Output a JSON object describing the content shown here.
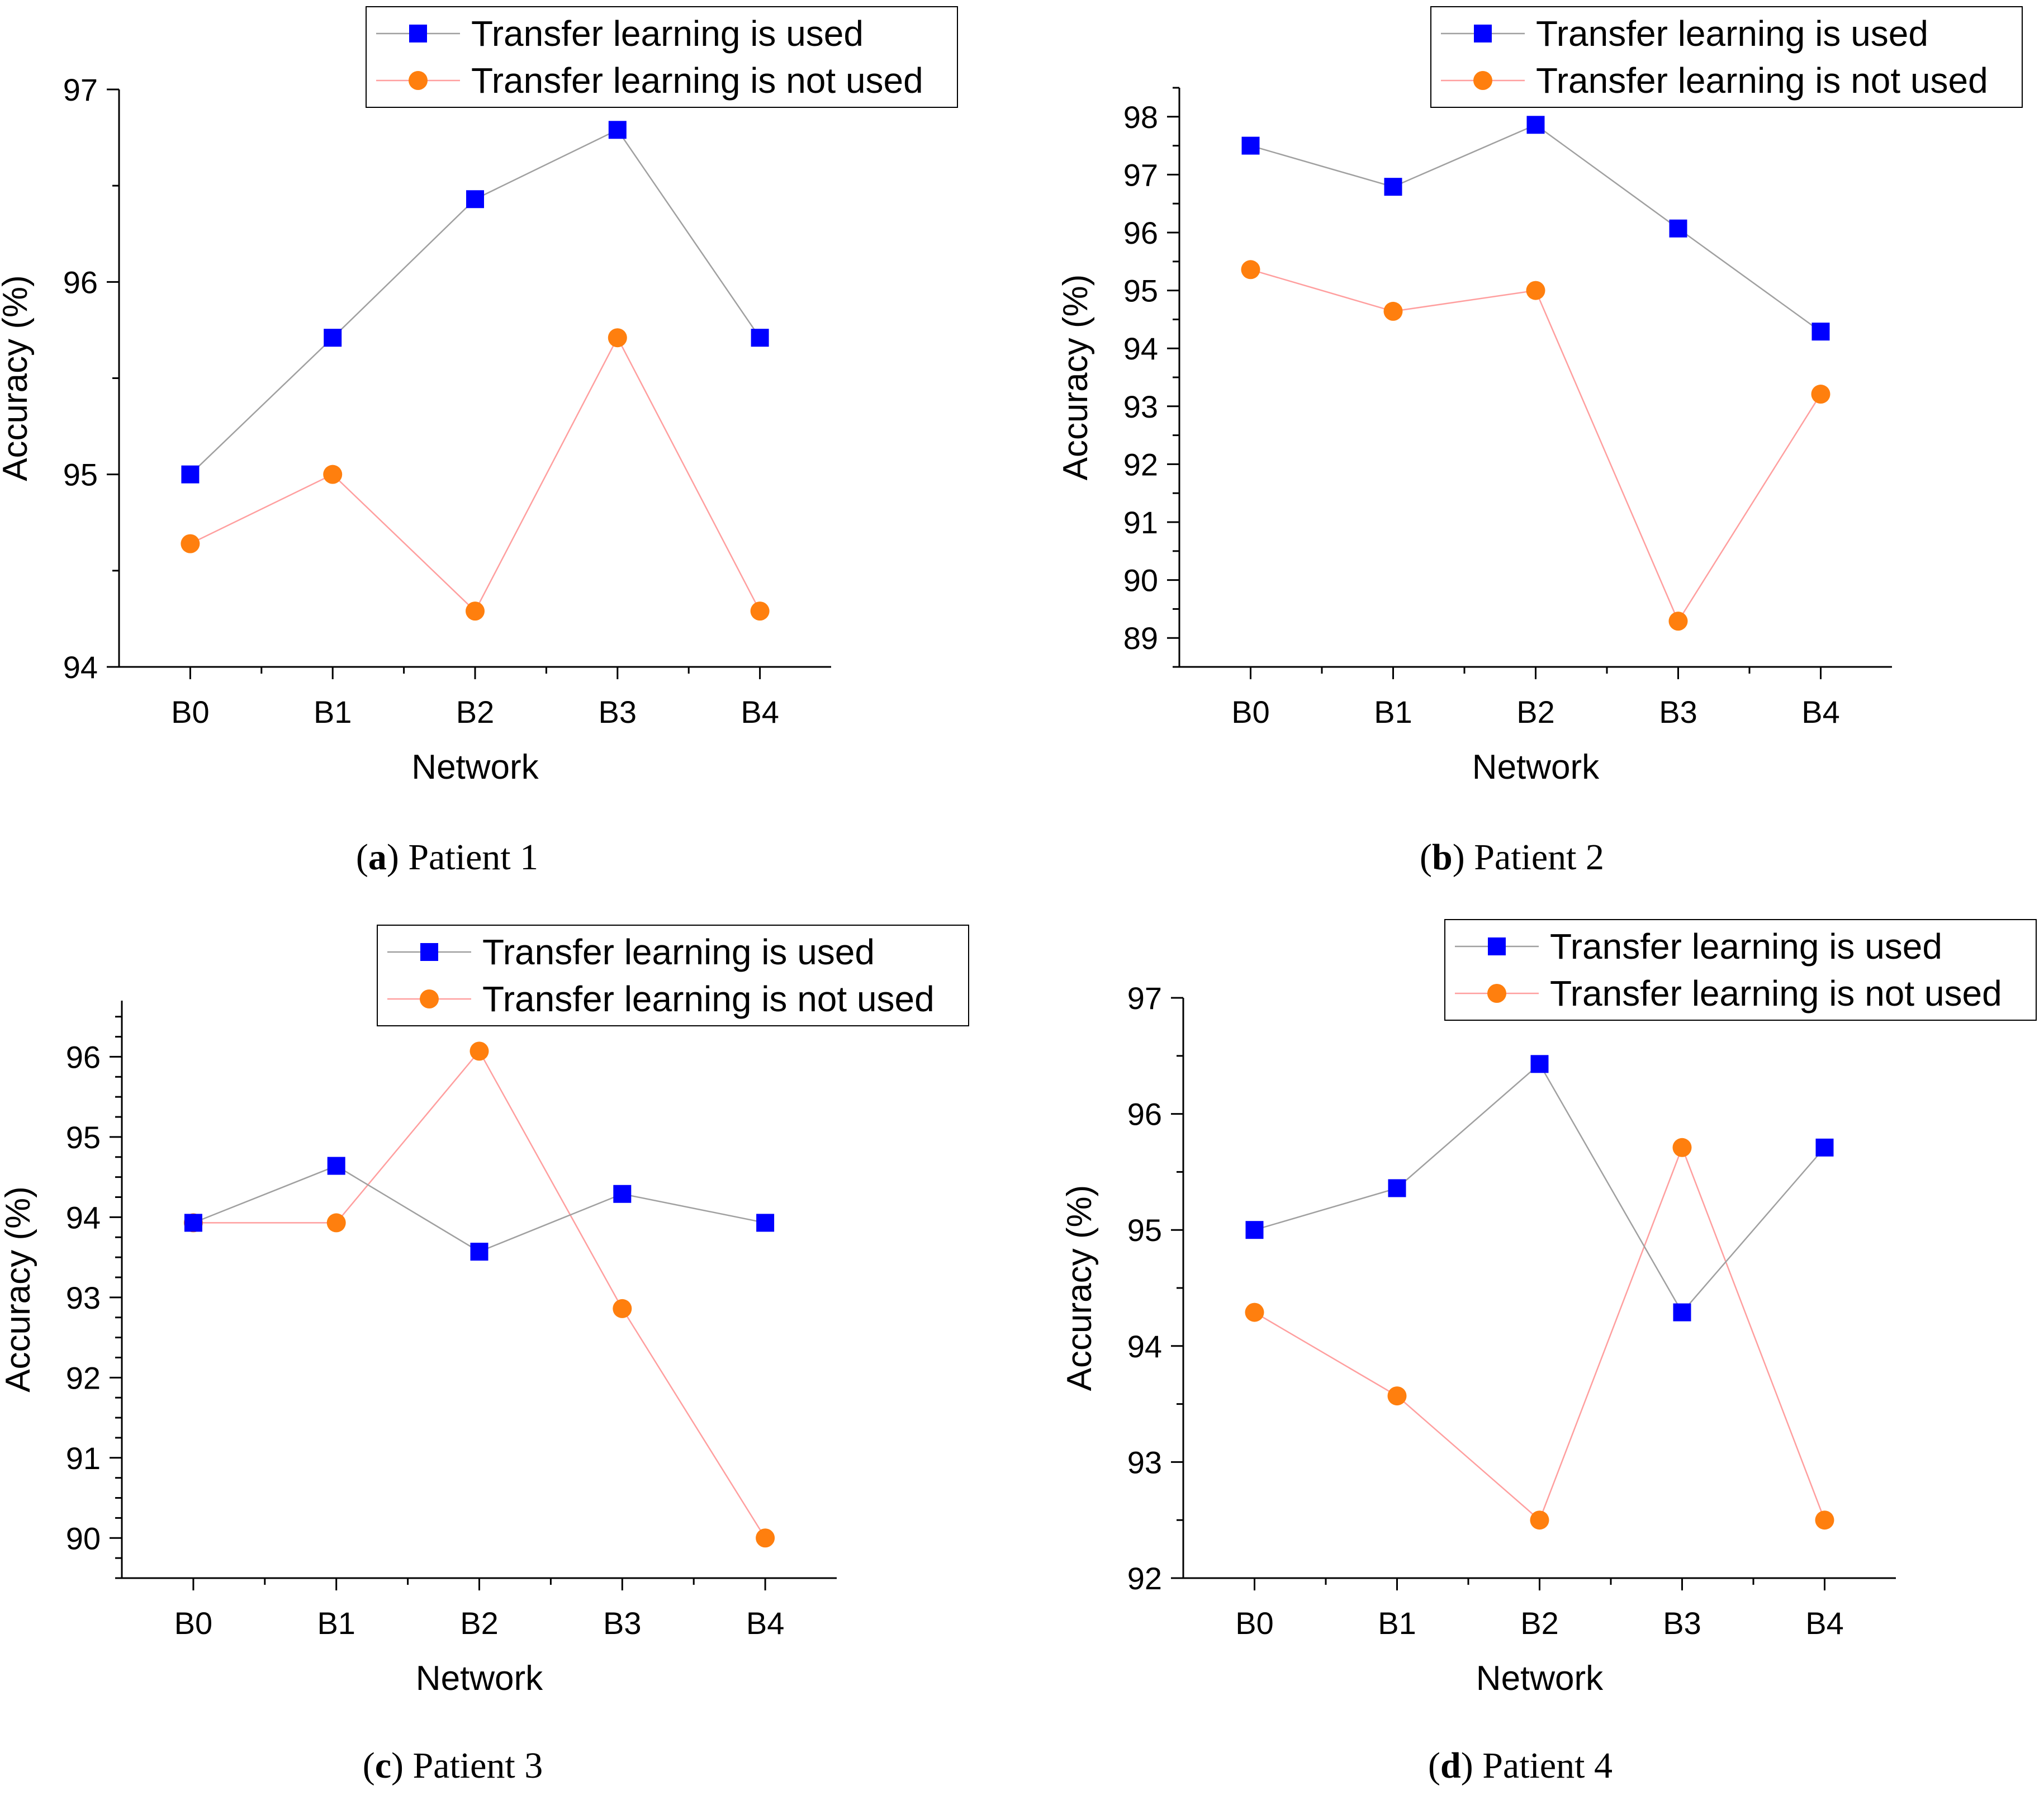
{
  "figure": {
    "legend": {
      "used": "Transfer learning is used",
      "not_used": "Transfer learning is not used"
    },
    "colors": {
      "used_marker": "#0000ff",
      "used_line": "#a0a0a0",
      "not_used_marker": "#ff7f0e",
      "not_used_line": "#ff9f9f"
    }
  },
  "chart_data": [
    {
      "type": "line",
      "panel": "a",
      "caption_letter": "a",
      "caption_text": "Patient 1",
      "categories": [
        "B0",
        "B1",
        "B2",
        "B3",
        "B4"
      ],
      "xlabel": "Network",
      "ylabel": "Accuracy (%)",
      "ylim": [
        94,
        97
      ],
      "yticks": [
        94,
        95,
        96,
        97
      ],
      "yminor": 0.5,
      "series": [
        {
          "name": "Transfer learning is used",
          "values": [
            95.0,
            95.71,
            96.43,
            96.79,
            95.71
          ]
        },
        {
          "name": "Transfer learning is not used",
          "values": [
            94.64,
            95.0,
            94.29,
            95.71,
            94.29
          ]
        }
      ]
    },
    {
      "type": "line",
      "panel": "b",
      "caption_letter": "b",
      "caption_text": "Patient 2",
      "categories": [
        "B0",
        "B1",
        "B2",
        "B3",
        "B4"
      ],
      "xlabel": "Network",
      "ylabel": "Accuracy (%)",
      "ylim": [
        88.5,
        98.5
      ],
      "yticks": [
        89,
        90,
        91,
        92,
        93,
        94,
        95,
        96,
        97,
        98
      ],
      "yminor": 0.5,
      "series": [
        {
          "name": "Transfer learning is used",
          "values": [
            97.5,
            96.79,
            97.86,
            96.07,
            94.29
          ]
        },
        {
          "name": "Transfer learning is not used",
          "values": [
            95.36,
            94.64,
            95.0,
            89.29,
            93.21
          ]
        }
      ]
    },
    {
      "type": "line",
      "panel": "c",
      "caption_letter": "c",
      "caption_text": "Patient 3",
      "categories": [
        "B0",
        "B1",
        "B2",
        "B3",
        "B4"
      ],
      "xlabel": "Network",
      "ylabel": "Accuracy (%)",
      "ylim": [
        89.5,
        96.7
      ],
      "yticks": [
        90,
        91,
        92,
        93,
        94,
        95,
        96
      ],
      "yminor": 0.25,
      "series": [
        {
          "name": "Transfer learning is used",
          "values": [
            93.93,
            94.64,
            93.57,
            94.29,
            93.93
          ]
        },
        {
          "name": "Transfer learning is not used",
          "values": [
            93.93,
            93.93,
            96.07,
            92.86,
            90.0
          ]
        }
      ]
    },
    {
      "type": "line",
      "panel": "d",
      "caption_letter": "d",
      "caption_text": "Patient 4",
      "categories": [
        "B0",
        "B1",
        "B2",
        "B3",
        "B4"
      ],
      "xlabel": "Network",
      "ylabel": "Accuracy (%)",
      "ylim": [
        92,
        97
      ],
      "yticks": [
        92,
        93,
        94,
        95,
        96,
        97
      ],
      "yminor": 0.5,
      "series": [
        {
          "name": "Transfer learning is used",
          "values": [
            95.0,
            95.36,
            96.43,
            94.29,
            95.71
          ]
        },
        {
          "name": "Transfer learning is not used",
          "values": [
            94.29,
            93.57,
            92.5,
            95.71,
            92.5
          ]
        }
      ]
    }
  ]
}
